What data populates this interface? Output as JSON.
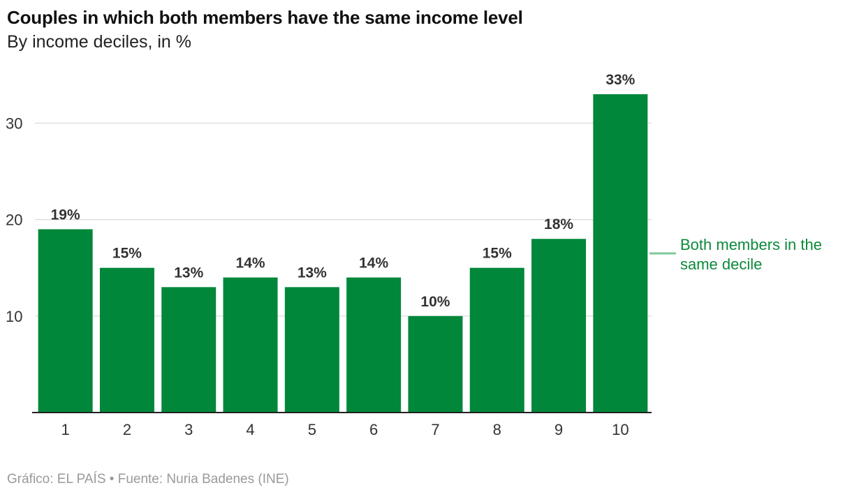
{
  "title": "Couples in which both members have the same income level",
  "subtitle": "By income deciles, in %",
  "footer": "Gráfico: EL PAÍS • Fuente: Nuria Badenes (INE)",
  "colors": {
    "bar": "#00873a",
    "legend_text": "#0b8a3b",
    "legend_line": "#7fc89c",
    "grid": "#d9d9d9",
    "axis": "#222222",
    "tick_text": "#333333",
    "label_text": "#333333"
  },
  "chart_data": {
    "type": "bar",
    "title": "Couples in which both members have the same income level",
    "subtitle": "By income deciles, in %",
    "xlabel": "",
    "ylabel": "",
    "categories": [
      "1",
      "2",
      "3",
      "4",
      "5",
      "6",
      "7",
      "8",
      "9",
      "10"
    ],
    "series": [
      {
        "name": "Both members in the same decile",
        "values": [
          19,
          15,
          13,
          14,
          13,
          14,
          10,
          15,
          18,
          33
        ]
      }
    ],
    "data_labels": [
      "19%",
      "15%",
      "13%",
      "14%",
      "13%",
      "14%",
      "10%",
      "15%",
      "18%",
      "33%"
    ],
    "ylim": [
      0,
      33
    ],
    "yticks": [
      10,
      20,
      30
    ],
    "ytick_labels": [
      "10",
      "20",
      "30"
    ],
    "grid": true,
    "legend": "right, inline annotation"
  }
}
